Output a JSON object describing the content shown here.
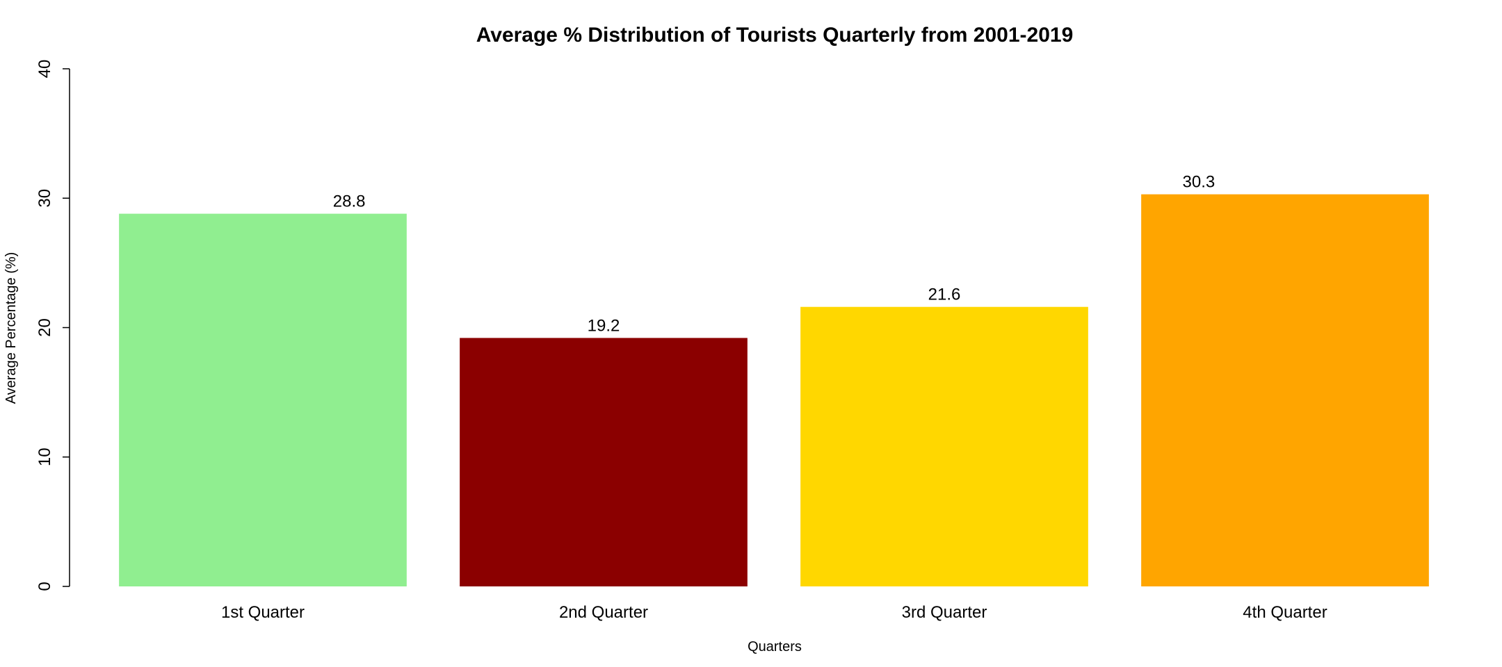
{
  "chart_data": {
    "type": "bar",
    "title": "Average % Distribution of Tourists Quarterly from 2001-2019",
    "xlabel": "Quarters",
    "ylabel": "Average Percentage (%)",
    "categories": [
      "1st Quarter",
      "2nd Quarter",
      "3rd Quarter",
      "4th Quarter"
    ],
    "values": [
      28.8,
      19.2,
      21.6,
      30.3
    ],
    "data_labels": [
      "28.8",
      "19.2",
      "21.6",
      "30.3"
    ],
    "colors": [
      "#90ee90",
      "#8b0000",
      "#ffd700",
      "#ffa500"
    ],
    "ylim": [
      0,
      40
    ],
    "yticks": [
      0,
      10,
      20,
      30,
      40
    ],
    "ytick_labels": [
      "0",
      "10",
      "20",
      "30",
      "40"
    ],
    "grid": false,
    "legend": "none"
  }
}
